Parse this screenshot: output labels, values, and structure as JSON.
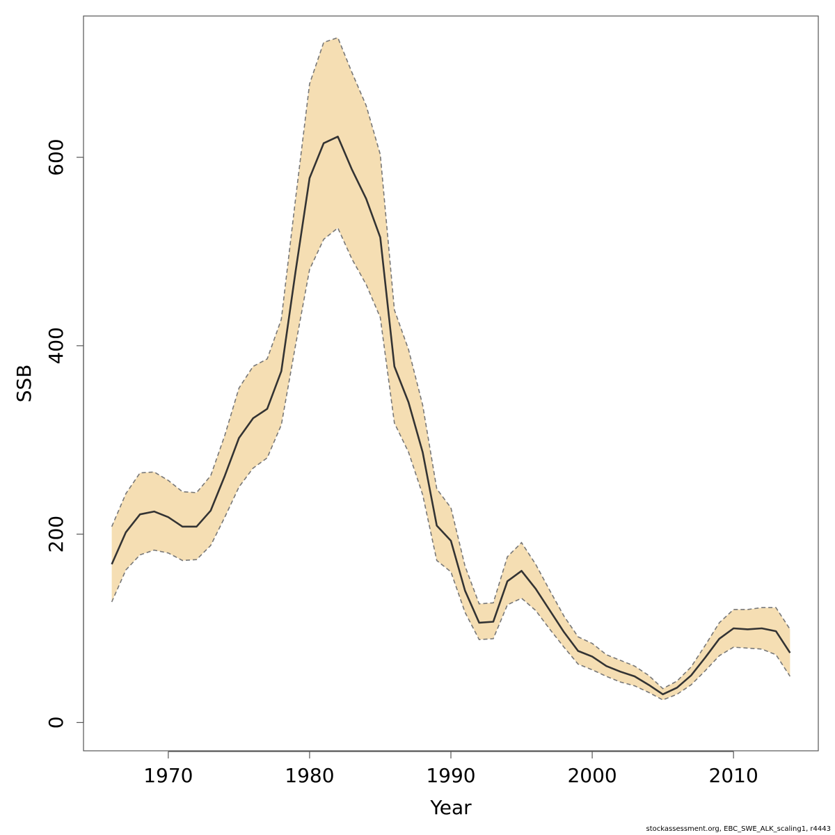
{
  "chart_data": {
    "type": "area",
    "xlabel": "Year",
    "ylabel": "SSB",
    "xlim": [
      1964,
      2016
    ],
    "ylim": [
      -30,
      750
    ],
    "x_ticks": [
      1970,
      1980,
      1990,
      2000,
      2010
    ],
    "y_ticks": [
      0,
      200,
      400,
      600
    ],
    "grid": false,
    "legend": "none",
    "colors": {
      "band": "#F5DEB3",
      "line": "#333333",
      "bound": "#777777",
      "frame": "#555555"
    },
    "x": [
      1966,
      1967,
      1968,
      1969,
      1970,
      1971,
      1972,
      1973,
      1974,
      1975,
      1976,
      1977,
      1978,
      1979,
      1980,
      1981,
      1982,
      1983,
      1984,
      1985,
      1986,
      1987,
      1988,
      1989,
      1990,
      1991,
      1992,
      1993,
      1994,
      1995,
      1996,
      1997,
      1998,
      1999,
      2000,
      2001,
      2002,
      2003,
      2004,
      2005,
      2006,
      2007,
      2008,
      2009,
      2010,
      2011,
      2012,
      2013,
      2014
    ],
    "series": [
      {
        "role": "estimate",
        "values": [
          168,
          202,
          221,
          224,
          218,
          208,
          208,
          225,
          262,
          302,
          323,
          333,
          373,
          478,
          578,
          615,
          622,
          587,
          556,
          515,
          378,
          340,
          287,
          209,
          193,
          140,
          106,
          107,
          150,
          161,
          142,
          119,
          96,
          76,
          70,
          60,
          54,
          49,
          40,
          30,
          37,
          50,
          69,
          89,
          100,
          99,
          100,
          97,
          74
        ]
      },
      {
        "role": "upper",
        "values": [
          208,
          243,
          265,
          266,
          257,
          245,
          244,
          262,
          305,
          355,
          378,
          386,
          428,
          555,
          678,
          722,
          727,
          690,
          655,
          603,
          438,
          396,
          337,
          248,
          228,
          166,
          126,
          127,
          176,
          191,
          168,
          140,
          113,
          91,
          84,
          72,
          66,
          60,
          50,
          36,
          44,
          59,
          82,
          106,
          120,
          120,
          122,
          122,
          99
        ]
      },
      {
        "role": "lower",
        "values": [
          128,
          162,
          178,
          183,
          180,
          172,
          173,
          188,
          218,
          250,
          270,
          281,
          316,
          400,
          481,
          513,
          525,
          492,
          465,
          430,
          318,
          287,
          242,
          172,
          160,
          117,
          88,
          89,
          125,
          132,
          119,
          99,
          80,
          62,
          56,
          49,
          43,
          39,
          32,
          24,
          30,
          40,
          55,
          71,
          80,
          79,
          78,
          72,
          49
        ]
      }
    ]
  },
  "footer": {
    "credit": "stockassessment.org, EBC_SWE_ALK_scaling1, r4443"
  }
}
